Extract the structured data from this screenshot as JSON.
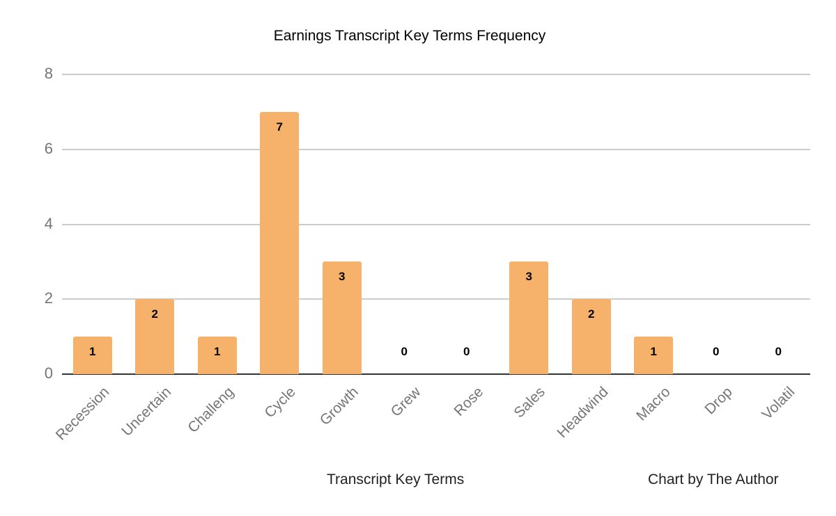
{
  "chart_data": {
    "type": "bar",
    "title": "Earnings Transcript Key Terms Frequency",
    "xlabel": "Transcript Key Terms",
    "ylabel": "",
    "credit": "Chart by The Author",
    "categories": [
      "Recession",
      "Uncertain",
      "Challeng",
      "Cycle",
      "Growth",
      "Grew",
      "Rose",
      "Sales",
      "Headwind",
      "Macro",
      "Drop",
      "Volatil"
    ],
    "values": [
      1,
      2,
      1,
      7,
      3,
      0,
      0,
      3,
      2,
      1,
      0,
      0
    ],
    "ylim": [
      0,
      8
    ],
    "yticks": [
      0,
      2,
      4,
      6,
      8
    ],
    "grid": true,
    "legend": "none",
    "data_labels": true,
    "bar_color": "#f6b26b"
  },
  "colors": {
    "bar": "#f6b26b",
    "grid": "#cccccc",
    "baseline": "#333333",
    "tick_text": "#757575"
  }
}
